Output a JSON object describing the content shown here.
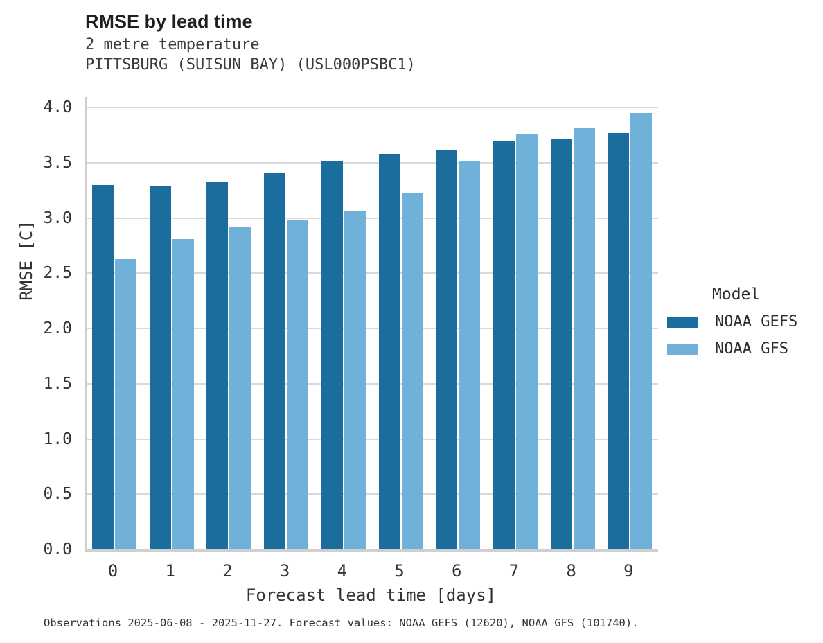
{
  "header": {
    "title": "RMSE by lead time",
    "subtitle_line1": "2 metre temperature",
    "subtitle_line2": "PITTSBURG (SUISUN BAY) (USL000PSBC1)"
  },
  "chart_data": {
    "type": "bar",
    "title": "RMSE by lead time",
    "subtitle": "2 metre temperature — PITTSBURG (SUISUN BAY) (USL000PSBC1)",
    "categories": [
      "0",
      "1",
      "2",
      "3",
      "4",
      "5",
      "6",
      "7",
      "8",
      "9"
    ],
    "series": [
      {
        "name": "NOAA GEFS",
        "color": "#1b6d9e",
        "values": [
          3.3,
          3.29,
          3.32,
          3.41,
          3.52,
          3.58,
          3.62,
          3.69,
          3.71,
          3.77
        ]
      },
      {
        "name": "NOAA GFS",
        "color": "#70b1d9",
        "values": [
          2.63,
          2.81,
          2.92,
          2.98,
          3.06,
          3.23,
          3.52,
          3.76,
          3.81,
          3.95
        ]
      }
    ],
    "xlabel": "Forecast lead time [days]",
    "ylabel": "RMSE [C]",
    "ylim": [
      0.0,
      4.09
    ],
    "yticks": [
      0.0,
      0.5,
      1.0,
      1.5,
      2.0,
      2.5,
      3.0,
      3.5,
      4.0
    ],
    "grid": true,
    "legend_title": "Model",
    "legend_position": "right of plot, middle"
  },
  "legend": {
    "title": "Model",
    "items": [
      {
        "label": "NOAA GEFS",
        "color": "#1b6d9e"
      },
      {
        "label": "NOAA GFS",
        "color": "#70b1d9"
      }
    ]
  },
  "axes": {
    "xlabel": "Forecast lead time [days]",
    "ylabel": "RMSE [C]"
  },
  "footer": {
    "text": "Observations 2025-06-08 - 2025-11-27. Forecast values: NOAA GEFS (12620), NOAA GFS (101740)."
  }
}
